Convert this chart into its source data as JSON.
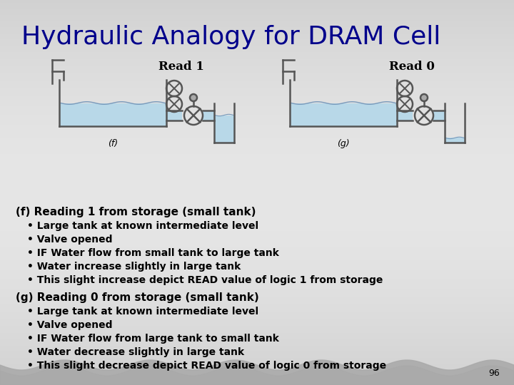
{
  "title": "Hydraulic Analogy for DRAM Cell",
  "title_color": "#00008B",
  "title_fontsize": 26,
  "background_color": "#C8C8C8",
  "f_label": "(f)",
  "g_label": "(g)",
  "read1_label": "Read 1",
  "read0_label": "Read 0",
  "page_number": "96",
  "section_f_header": "(f) Reading 1 from storage (small tank)",
  "section_g_header": "(g) Reading 0 from storage (small tank)",
  "f_bullets": [
    "Large tank at known intermediate level",
    "Valve opened",
    "IF Water flow from small tank to large tank",
    [
      "Water ",
      "increase",
      " slightly in large tank"
    ],
    [
      "This slight ",
      "increase",
      " depict READ value of logic 1 from storage"
    ]
  ],
  "g_bullets": [
    "Large tank at known intermediate level",
    "Valve opened",
    "IF Water flow from large tank to small tank",
    [
      "Water ",
      "decrease",
      " slightly in large tank"
    ],
    [
      "This slight ",
      "decrease",
      " depict READ value of logic 0 from storage"
    ]
  ],
  "water_color": "#B8D8E8",
  "tank_edge_color": "#555555",
  "text_color": "#000000"
}
